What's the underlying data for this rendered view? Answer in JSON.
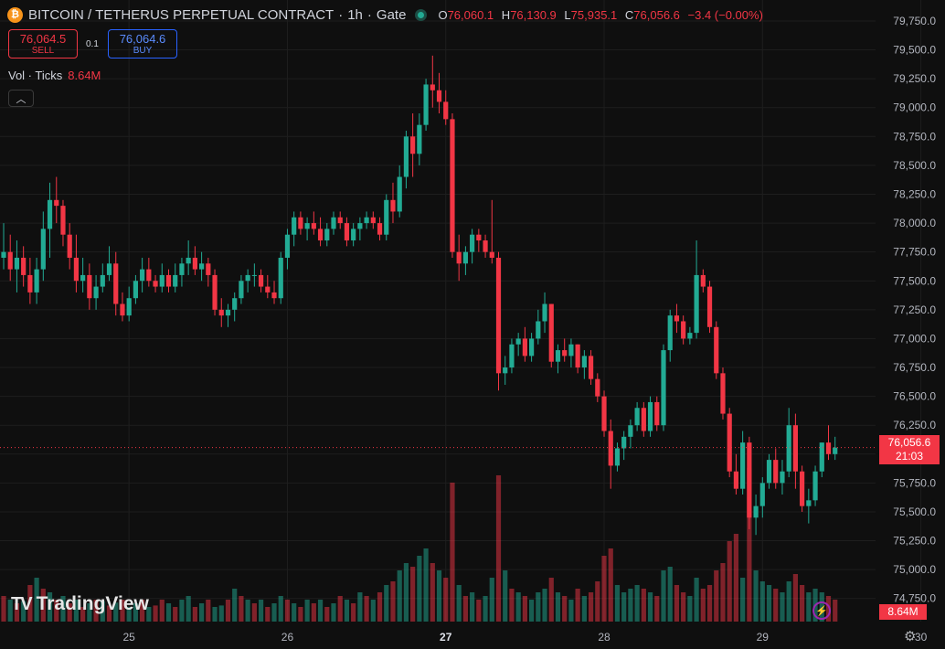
{
  "header": {
    "coin_icon": "bitcoin-icon",
    "symbol": "BITCOIN / TETHERUS PERPETUAL CONTRACT",
    "sep1": "·",
    "interval": "1h",
    "sep2": "·",
    "exchange": "Gate",
    "ohlc": {
      "o_label": "O",
      "o": "76,060.1",
      "h_label": "H",
      "h": "76,130.9",
      "l_label": "L",
      "l": "75,935.1",
      "c_label": "C",
      "c": "76,056.6",
      "change": "−3.4 (−0.00%)"
    }
  },
  "trade": {
    "sell_price": "76,064.5",
    "sell_label": "SELL",
    "spread": "0.1",
    "buy_price": "76,064.6",
    "buy_label": "BUY"
  },
  "volume_legend": {
    "label": "Vol · Ticks",
    "value": "8.64M"
  },
  "collapse_icon": "chevron-up-icon",
  "logo_text": "TradingView",
  "last_price_tag": {
    "price": "76,056.6",
    "countdown": "21:03"
  },
  "volume_tag": "8.64M",
  "colors": {
    "up": "#22ab94",
    "down": "#f23645",
    "background": "#0f0f0f",
    "grid": "#1e1e1e"
  },
  "chart_data": {
    "type": "candlestick",
    "y_axis_ticks": [
      "79,750.0",
      "79,500.0",
      "79,250.0",
      "79,000.0",
      "78,750.0",
      "78,500.0",
      "78,250.0",
      "78,000.0",
      "77,750.0",
      "77,500.0",
      "77,250.0",
      "77,000.0",
      "76,750.0",
      "76,500.0",
      "76,250.0",
      "76,000.0",
      "75,750.0",
      "75,500.0",
      "75,250.0",
      "75,000.0",
      "74,750.0"
    ],
    "ylim": [
      74550,
      79900
    ],
    "x_axis_ticks": [
      {
        "label": "25",
        "bold": false
      },
      {
        "label": "26",
        "bold": false
      },
      {
        "label": "27",
        "bold": true
      },
      {
        "label": "28",
        "bold": false
      },
      {
        "label": "29",
        "bold": false
      },
      {
        "label": "30",
        "bold": false
      }
    ],
    "x_tick_candle_index": [
      19,
      43,
      67,
      91,
      115,
      139
    ],
    "last_price": 76056.6,
    "candles": [
      [
        77700,
        78000,
        77600,
        77750
      ],
      [
        77750,
        77900,
        77500,
        77600
      ],
      [
        77600,
        77850,
        77400,
        77700
      ],
      [
        77700,
        77800,
        77450,
        77550
      ],
      [
        77550,
        77700,
        77300,
        77400
      ],
      [
        77400,
        77700,
        77300,
        77600
      ],
      [
        77600,
        78100,
        77500,
        77950
      ],
      [
        77950,
        78350,
        77700,
        78200
      ],
      [
        78200,
        78400,
        78000,
        78150
      ],
      [
        78150,
        78200,
        77800,
        77900
      ],
      [
        77900,
        78000,
        77600,
        77700
      ],
      [
        77700,
        77900,
        77400,
        77500
      ],
      [
        77500,
        77700,
        77400,
        77550
      ],
      [
        77550,
        77650,
        77250,
        77350
      ],
      [
        77350,
        77550,
        77250,
        77450
      ],
      [
        77450,
        77650,
        77400,
        77550
      ],
      [
        77550,
        77800,
        77500,
        77650
      ],
      [
        77650,
        77750,
        77200,
        77300
      ],
      [
        77300,
        77400,
        77150,
        77200
      ],
      [
        77200,
        77450,
        77150,
        77350
      ],
      [
        77350,
        77550,
        77300,
        77500
      ],
      [
        77500,
        77700,
        77400,
        77600
      ],
      [
        77600,
        77700,
        77450,
        77500
      ],
      [
        77500,
        77550,
        77400,
        77450
      ],
      [
        77450,
        77650,
        77400,
        77550
      ],
      [
        77550,
        77600,
        77400,
        77450
      ],
      [
        77450,
        77650,
        77400,
        77550
      ],
      [
        77550,
        77700,
        77450,
        77650
      ],
      [
        77650,
        77850,
        77550,
        77700
      ],
      [
        77700,
        77800,
        77550,
        77600
      ],
      [
        77600,
        77750,
        77500,
        77650
      ],
      [
        77650,
        77700,
        77450,
        77550
      ],
      [
        77550,
        77600,
        77200,
        77250
      ],
      [
        77250,
        77350,
        77100,
        77200
      ],
      [
        77200,
        77300,
        77100,
        77250
      ],
      [
        77250,
        77400,
        77150,
        77350
      ],
      [
        77350,
        77550,
        77300,
        77500
      ],
      [
        77500,
        77600,
        77400,
        77550
      ],
      [
        77550,
        77650,
        77450,
        77550
      ],
      [
        77550,
        77600,
        77400,
        77450
      ],
      [
        77450,
        77550,
        77350,
        77400
      ],
      [
        77400,
        77500,
        77300,
        77350
      ],
      [
        77350,
        77750,
        77300,
        77700
      ],
      [
        77700,
        77950,
        77600,
        77900
      ],
      [
        77900,
        78100,
        77800,
        78050
      ],
      [
        78050,
        78100,
        77900,
        77950
      ],
      [
        77950,
        78050,
        77850,
        78000
      ],
      [
        78000,
        78100,
        77900,
        77950
      ],
      [
        77950,
        78050,
        77800,
        77850
      ],
      [
        77850,
        78000,
        77800,
        77950
      ],
      [
        77950,
        78100,
        77900,
        78050
      ],
      [
        78050,
        78100,
        77950,
        78000
      ],
      [
        78000,
        78050,
        77800,
        77850
      ],
      [
        77850,
        78000,
        77800,
        77950
      ],
      [
        77950,
        78050,
        77850,
        78000
      ],
      [
        78000,
        78100,
        77950,
        78050
      ],
      [
        78050,
        78100,
        77950,
        78000
      ],
      [
        78000,
        78050,
        77850,
        77900
      ],
      [
        77900,
        78250,
        77850,
        78200
      ],
      [
        78200,
        78350,
        78000,
        78100
      ],
      [
        78100,
        78500,
        78050,
        78400
      ],
      [
        78400,
        78800,
        78300,
        78750
      ],
      [
        78750,
        78950,
        78400,
        78600
      ],
      [
        78600,
        78950,
        78500,
        78850
      ],
      [
        78850,
        79250,
        78800,
        79200
      ],
      [
        79200,
        79450,
        79000,
        79150
      ],
      [
        79150,
        79300,
        78950,
        79050
      ],
      [
        79050,
        79150,
        78850,
        78900
      ],
      [
        78900,
        78950,
        77700,
        77750
      ],
      [
        77750,
        77900,
        77500,
        77650
      ],
      [
        77650,
        77800,
        77550,
        77750
      ],
      [
        77750,
        77950,
        77650,
        77900
      ],
      [
        77900,
        77950,
        77750,
        77850
      ],
      [
        77850,
        77900,
        77700,
        77750
      ],
      [
        77750,
        78200,
        77650,
        77700
      ],
      [
        77700,
        77750,
        76550,
        76700
      ],
      [
        76700,
        76850,
        76600,
        76750
      ],
      [
        76750,
        77000,
        76700,
        76950
      ],
      [
        76950,
        77050,
        76850,
        77000
      ],
      [
        77000,
        77100,
        76800,
        76850
      ],
      [
        76850,
        77050,
        76800,
        77000
      ],
      [
        77000,
        77250,
        76950,
        77150
      ],
      [
        77150,
        77400,
        77050,
        77300
      ],
      [
        77300,
        77300,
        76750,
        76800
      ],
      [
        76800,
        76950,
        76700,
        76900
      ],
      [
        76900,
        77000,
        76800,
        76850
      ],
      [
        76850,
        77000,
        76750,
        76950
      ],
      [
        76950,
        76950,
        76700,
        76750
      ],
      [
        76750,
        76900,
        76650,
        76850
      ],
      [
        76850,
        76900,
        76600,
        76650
      ],
      [
        76650,
        76700,
        76450,
        76500
      ],
      [
        76500,
        76550,
        76150,
        76200
      ],
      [
        76200,
        76300,
        75700,
        75900
      ],
      [
        75900,
        76100,
        75850,
        76050
      ],
      [
        76050,
        76200,
        75950,
        76150
      ],
      [
        76150,
        76300,
        76050,
        76250
      ],
      [
        76250,
        76450,
        76200,
        76400
      ],
      [
        76400,
        76450,
        76150,
        76200
      ],
      [
        76200,
        76500,
        76150,
        76450
      ],
      [
        76450,
        76500,
        76200,
        76250
      ],
      [
        76250,
        76950,
        76200,
        76900
      ],
      [
        76900,
        77250,
        76800,
        77200
      ],
      [
        77200,
        77300,
        77050,
        77150
      ],
      [
        77150,
        77200,
        76950,
        77000
      ],
      [
        77000,
        77100,
        76950,
        77050
      ],
      [
        77050,
        77850,
        77000,
        77550
      ],
      [
        77550,
        77600,
        77400,
        77450
      ],
      [
        77450,
        77500,
        77050,
        77100
      ],
      [
        77100,
        77150,
        76650,
        76700
      ],
      [
        76700,
        76750,
        76300,
        76350
      ],
      [
        76350,
        76400,
        75800,
        75850
      ],
      [
        75850,
        76000,
        75650,
        75700
      ],
      [
        75700,
        76200,
        75650,
        76100
      ],
      [
        76100,
        76150,
        75350,
        75450
      ],
      [
        75450,
        75650,
        75300,
        75550
      ],
      [
        75550,
        75800,
        75450,
        75750
      ],
      [
        75750,
        76000,
        75700,
        75950
      ],
      [
        75950,
        76050,
        75700,
        75750
      ],
      [
        75750,
        75950,
        75650,
        75850
      ],
      [
        75850,
        76400,
        75800,
        76250
      ],
      [
        76250,
        76350,
        75700,
        75850
      ],
      [
        75850,
        75900,
        75500,
        75550
      ],
      [
        75550,
        75700,
        75400,
        75600
      ],
      [
        75600,
        75900,
        75550,
        75850
      ],
      [
        75850,
        76100,
        75800,
        76100
      ],
      [
        76100,
        76250,
        75950,
        76000
      ],
      [
        76000,
        76150,
        75950,
        76056.6
      ]
    ],
    "volume": [
      [
        0.35,
        "down"
      ],
      [
        0.3,
        "up"
      ],
      [
        0.25,
        "down"
      ],
      [
        0.28,
        "up"
      ],
      [
        0.5,
        "down"
      ],
      [
        0.6,
        "up"
      ],
      [
        0.45,
        "down"
      ],
      [
        0.4,
        "up"
      ],
      [
        0.3,
        "down"
      ],
      [
        0.35,
        "up"
      ],
      [
        0.25,
        "down"
      ],
      [
        0.3,
        "up"
      ],
      [
        0.2,
        "down"
      ],
      [
        0.25,
        "up"
      ],
      [
        0.3,
        "down"
      ],
      [
        0.28,
        "up"
      ],
      [
        0.22,
        "down"
      ],
      [
        0.26,
        "up"
      ],
      [
        0.3,
        "down"
      ],
      [
        0.2,
        "up"
      ],
      [
        0.25,
        "up"
      ],
      [
        0.3,
        "down"
      ],
      [
        0.2,
        "up"
      ],
      [
        0.22,
        "down"
      ],
      [
        0.3,
        "down"
      ],
      [
        0.25,
        "up"
      ],
      [
        0.2,
        "down"
      ],
      [
        0.3,
        "up"
      ],
      [
        0.35,
        "up"
      ],
      [
        0.2,
        "down"
      ],
      [
        0.25,
        "up"
      ],
      [
        0.3,
        "down"
      ],
      [
        0.2,
        "up"
      ],
      [
        0.22,
        "up"
      ],
      [
        0.3,
        "down"
      ],
      [
        0.45,
        "up"
      ],
      [
        0.35,
        "down"
      ],
      [
        0.3,
        "up"
      ],
      [
        0.25,
        "down"
      ],
      [
        0.3,
        "up"
      ],
      [
        0.2,
        "down"
      ],
      [
        0.25,
        "up"
      ],
      [
        0.35,
        "up"
      ],
      [
        0.3,
        "down"
      ],
      [
        0.25,
        "up"
      ],
      [
        0.2,
        "down"
      ],
      [
        0.3,
        "up"
      ],
      [
        0.25,
        "down"
      ],
      [
        0.3,
        "up"
      ],
      [
        0.2,
        "down"
      ],
      [
        0.25,
        "up"
      ],
      [
        0.35,
        "down"
      ],
      [
        0.3,
        "up"
      ],
      [
        0.25,
        "down"
      ],
      [
        0.4,
        "up"
      ],
      [
        0.35,
        "down"
      ],
      [
        0.3,
        "up"
      ],
      [
        0.4,
        "down"
      ],
      [
        0.5,
        "up"
      ],
      [
        0.55,
        "down"
      ],
      [
        0.7,
        "up"
      ],
      [
        0.8,
        "up"
      ],
      [
        0.75,
        "down"
      ],
      [
        0.9,
        "up"
      ],
      [
        1.0,
        "up"
      ],
      [
        0.8,
        "down"
      ],
      [
        0.7,
        "up"
      ],
      [
        0.6,
        "down"
      ],
      [
        1.9,
        "down"
      ],
      [
        0.5,
        "up"
      ],
      [
        0.35,
        "down"
      ],
      [
        0.4,
        "up"
      ],
      [
        0.3,
        "down"
      ],
      [
        0.35,
        "up"
      ],
      [
        0.6,
        "up"
      ],
      [
        2.0,
        "down"
      ],
      [
        0.7,
        "up"
      ],
      [
        0.45,
        "down"
      ],
      [
        0.4,
        "up"
      ],
      [
        0.35,
        "down"
      ],
      [
        0.3,
        "up"
      ],
      [
        0.4,
        "up"
      ],
      [
        0.45,
        "up"
      ],
      [
        0.6,
        "down"
      ],
      [
        0.4,
        "up"
      ],
      [
        0.35,
        "down"
      ],
      [
        0.3,
        "up"
      ],
      [
        0.45,
        "down"
      ],
      [
        0.35,
        "up"
      ],
      [
        0.4,
        "down"
      ],
      [
        0.55,
        "down"
      ],
      [
        0.9,
        "down"
      ],
      [
        1.0,
        "down"
      ],
      [
        0.5,
        "up"
      ],
      [
        0.4,
        "up"
      ],
      [
        0.45,
        "up"
      ],
      [
        0.5,
        "up"
      ],
      [
        0.45,
        "down"
      ],
      [
        0.4,
        "up"
      ],
      [
        0.35,
        "down"
      ],
      [
        0.7,
        "up"
      ],
      [
        0.75,
        "up"
      ],
      [
        0.5,
        "down"
      ],
      [
        0.4,
        "down"
      ],
      [
        0.35,
        "up"
      ],
      [
        0.6,
        "up"
      ],
      [
        0.45,
        "down"
      ],
      [
        0.5,
        "down"
      ],
      [
        0.7,
        "down"
      ],
      [
        0.8,
        "down"
      ],
      [
        1.1,
        "down"
      ],
      [
        1.2,
        "down"
      ],
      [
        0.6,
        "up"
      ],
      [
        2.1,
        "down"
      ],
      [
        0.7,
        "up"
      ],
      [
        0.55,
        "up"
      ],
      [
        0.5,
        "up"
      ],
      [
        0.45,
        "down"
      ],
      [
        0.4,
        "up"
      ],
      [
        0.55,
        "up"
      ],
      [
        0.65,
        "down"
      ],
      [
        0.5,
        "down"
      ],
      [
        0.4,
        "up"
      ],
      [
        0.45,
        "up"
      ],
      [
        0.4,
        "up"
      ],
      [
        0.35,
        "down"
      ],
      [
        0.3,
        "down"
      ]
    ]
  }
}
